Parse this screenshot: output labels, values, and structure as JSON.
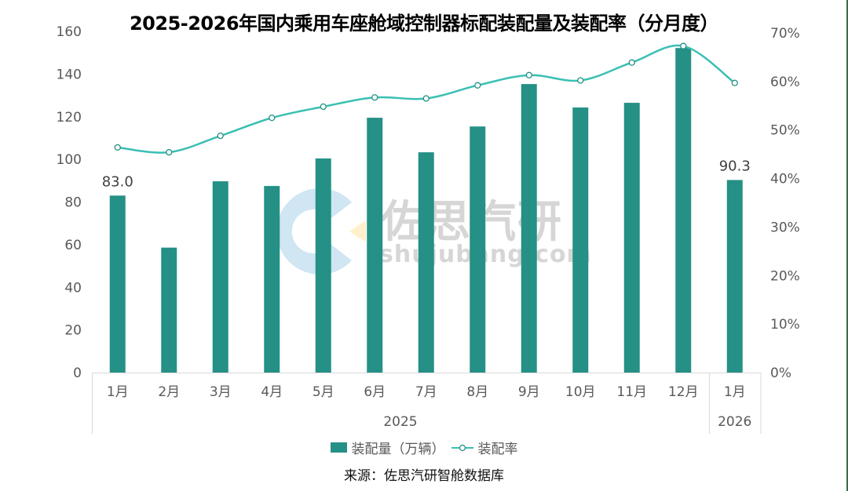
{
  "title": "2025-2026年国内乘用车座舱域控制器标配装配量及装配率（分月度）",
  "source": "来源：佐思汽研智舱数据库",
  "watermark": {
    "text": "佐思汽研",
    "url": "shujubang.com"
  },
  "colors": {
    "bar": "#259085",
    "line": "#3bbfb3",
    "edge": "#3d6b45"
  },
  "legend": {
    "bar_label": "装配量（万辆）",
    "line_label": "装配率"
  },
  "chart_data": {
    "type": "bar+line",
    "title": "2025-2026年国内乘用车座舱域控制器标配装配量及装配率（分月度）",
    "categories": [
      "1月",
      "2月",
      "3月",
      "4月",
      "5月",
      "6月",
      "7月",
      "8月",
      "9月",
      "10月",
      "11月",
      "12月",
      "1月"
    ],
    "year_groups": [
      {
        "label": "2025",
        "span": 12
      },
      {
        "label": "2026",
        "span": 1
      }
    ],
    "series": [
      {
        "name": "装配量（万辆）",
        "type": "bar",
        "axis": "left",
        "values": [
          83.0,
          58.6,
          89.7,
          87.5,
          100.4,
          119.5,
          103.3,
          115.4,
          135.3,
          124.3,
          126.5,
          152.2,
          90.3
        ]
      },
      {
        "name": "装配率",
        "type": "line",
        "axis": "right",
        "unit": "%",
        "values": [
          46.4,
          45.4,
          48.8,
          52.5,
          54.8,
          56.7,
          56.5,
          59.2,
          61.3,
          60.2,
          63.9,
          67.3,
          59.7
        ]
      }
    ],
    "data_labels": [
      {
        "index": 0,
        "text": "83.0"
      },
      {
        "index": 12,
        "text": "90.3"
      }
    ],
    "left_axis": {
      "min": 0,
      "max": 160,
      "step": 20,
      "ticks": [
        "0",
        "20",
        "40",
        "60",
        "80",
        "100",
        "120",
        "140",
        "160"
      ]
    },
    "right_axis": {
      "min": 0,
      "max": 70,
      "step": 10,
      "ticks": [
        "0%",
        "10%",
        "20%",
        "30%",
        "40%",
        "50%",
        "60%",
        "70%"
      ]
    },
    "grid": false,
    "legend_position": "bottom"
  }
}
